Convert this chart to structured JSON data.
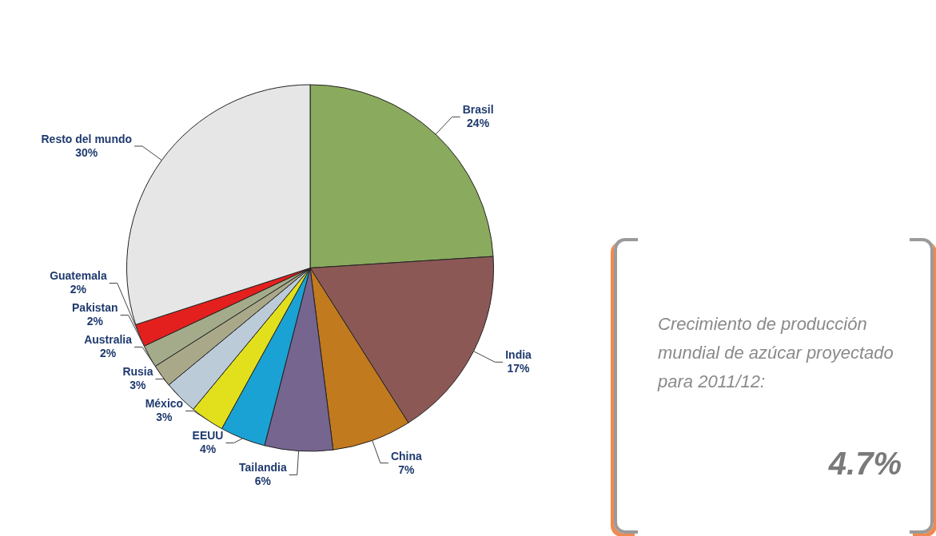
{
  "chart_data": [
    {
      "type": "pie",
      "categories": [
        "Brasil",
        "India",
        "China",
        "Tailandia",
        "EEUU",
        "México",
        "Rusia",
        "Australia",
        "Pakistan",
        "Guatemala",
        "Resto del mundo"
      ],
      "values": [
        24,
        17,
        7,
        6,
        4,
        3,
        3,
        2,
        2,
        2,
        30
      ],
      "value_labels": [
        "24%",
        "17%",
        "7%",
        "6%",
        "4%",
        "3%",
        "3%",
        "2%",
        "2%",
        "2%",
        "30%"
      ],
      "colors": [
        "#8aaa5e",
        "#8c5856",
        "#c27a1e",
        "#75658f",
        "#1ba2d4",
        "#e2e01c",
        "#bccbd8",
        "#a9a98a",
        "#a3ab8a",
        "#e3201e",
        "#e6e6e6"
      ],
      "legend": false
    },
    {
      "type": "other",
      "title": "Crecimiento de producción mundial de azúcar proyectado para 2011/12:",
      "annotations": [
        "4.7%"
      ]
    }
  ]
}
